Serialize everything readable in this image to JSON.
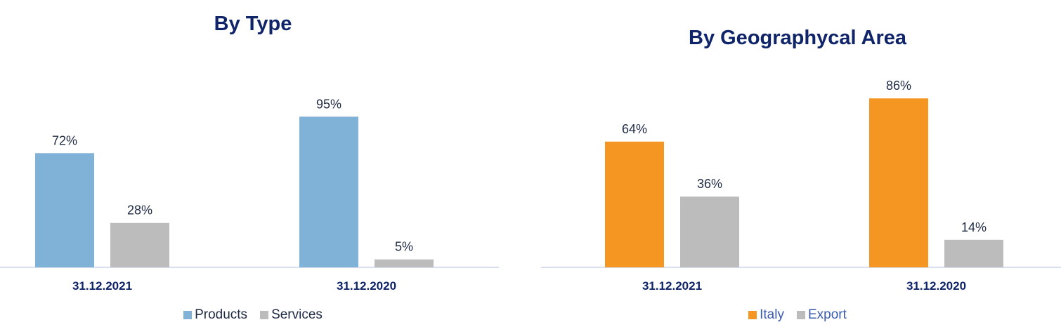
{
  "chart_data": [
    {
      "type": "bar",
      "title": "By Type",
      "categories": [
        "31.12.2021",
        "31.12.2020"
      ],
      "series": [
        {
          "name": "Products",
          "values": [
            72,
            95
          ],
          "labels": [
            "72%",
            "95%"
          ],
          "color": "#80b1d6"
        },
        {
          "name": "Services",
          "values": [
            28,
            5
          ],
          "labels": [
            "28%",
            "5%"
          ],
          "color": "#bcbcbc"
        }
      ],
      "ylim": [
        0,
        100
      ],
      "unit": "%",
      "grid": false,
      "legend_position": "bottom",
      "legend_text_color": "#1f2a44"
    },
    {
      "type": "bar",
      "title": "By Geographycal Area",
      "categories": [
        "31.12.2021",
        "31.12.2020"
      ],
      "series": [
        {
          "name": "Italy",
          "values": [
            64,
            86
          ],
          "labels": [
            "64%",
            "86%"
          ],
          "color": "#f59622"
        },
        {
          "name": "Export",
          "values": [
            36,
            14
          ],
          "labels": [
            "36%",
            "14%"
          ],
          "color": "#bcbcbc"
        }
      ],
      "ylim": [
        0,
        100
      ],
      "unit": "%",
      "grid": false,
      "legend_position": "bottom",
      "legend_text_color": "#3a5bb0"
    }
  ],
  "colors": {
    "title": "#0f2469",
    "data_label": "#1f2a44",
    "axis_line": "#d9dfee"
  }
}
